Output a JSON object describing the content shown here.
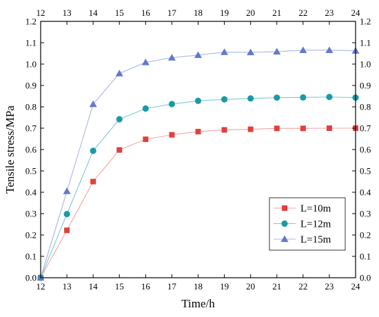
{
  "chart_data": {
    "type": "line",
    "xlabel": "Time/h",
    "ylabel": "Tensile stress/MPa",
    "xlim": [
      12,
      24
    ],
    "ylim": [
      0,
      1.2
    ],
    "x_ticks": [
      "12",
      "13",
      "14",
      "15",
      "16",
      "17",
      "18",
      "19",
      "20",
      "21",
      "22",
      "23",
      "24"
    ],
    "y_ticks": [
      "0.0",
      "0.1",
      "0.2",
      "0.3",
      "0.4",
      "0.5",
      "0.6",
      "0.7",
      "0.8",
      "0.9",
      "1.0",
      "1.1",
      "1.2"
    ],
    "x_ticks_top": true,
    "y_ticks_right": true,
    "grid": false,
    "legend_position": "bottom-right",
    "x": [
      12,
      13,
      14,
      15,
      16,
      17,
      18,
      19,
      20,
      21,
      22,
      23,
      24
    ],
    "series": [
      {
        "name": "L=10m",
        "marker": "square",
        "marker_color": "#e0403e",
        "line_color": "#f2a6a4",
        "values": [
          0,
          0.222,
          0.45,
          0.598,
          0.648,
          0.669,
          0.684,
          0.692,
          0.695,
          0.699,
          0.699,
          0.7,
          0.7
        ]
      },
      {
        "name": "L=12m",
        "marker": "circle",
        "marker_color": "#1a9aa6",
        "line_color": "#7ccad2",
        "values": [
          0,
          0.298,
          0.594,
          0.742,
          0.792,
          0.813,
          0.828,
          0.835,
          0.839,
          0.843,
          0.844,
          0.846,
          0.843
        ]
      },
      {
        "name": "L=15m",
        "marker": "triangle",
        "marker_color": "#6479c9",
        "line_color": "#a9b5e4",
        "values": [
          0,
          0.405,
          0.812,
          0.956,
          1.008,
          1.03,
          1.042,
          1.056,
          1.055,
          1.058,
          1.065,
          1.065,
          1.062
        ]
      }
    ]
  }
}
